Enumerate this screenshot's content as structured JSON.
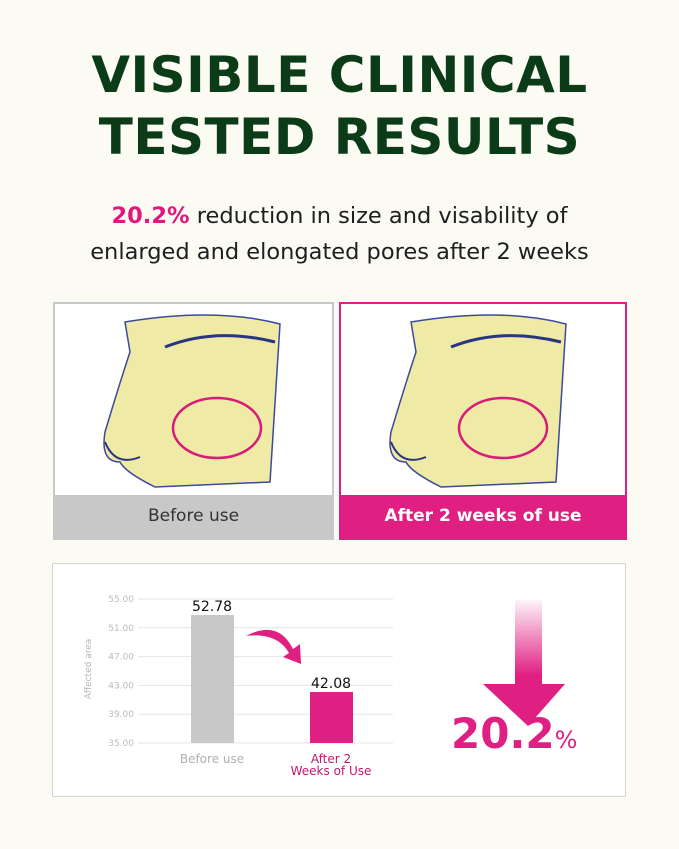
{
  "title": [
    "VISIBLE CLINICAL",
    "TESTED RESULTS"
  ],
  "subtitle": {
    "highlight": "20.2%",
    "line1_rest": " reduction in size and visability of",
    "line2": "enlarged and elongated pores after 2 weeks"
  },
  "panels": {
    "before_caption": "Before use",
    "after_caption": "After 2 weeks of use"
  },
  "colors": {
    "accent": "#e01f82",
    "title_green": "#0c3b17",
    "before_bar": "#c8c8c8"
  },
  "chart_data": {
    "type": "bar",
    "categories": [
      "Before use",
      "After 2 Weeks of Use"
    ],
    "values": [
      52.78,
      42.08
    ],
    "value_labels": [
      "52.78",
      "42.08"
    ],
    "ylabel": "Affected area",
    "ylim": [
      35,
      55
    ],
    "yticks": [
      "35.00",
      "39.00",
      "43.00",
      "47.00",
      "51.00",
      "55.00"
    ],
    "grid": true,
    "reduction_label": "20.2",
    "reduction_unit": "%"
  }
}
